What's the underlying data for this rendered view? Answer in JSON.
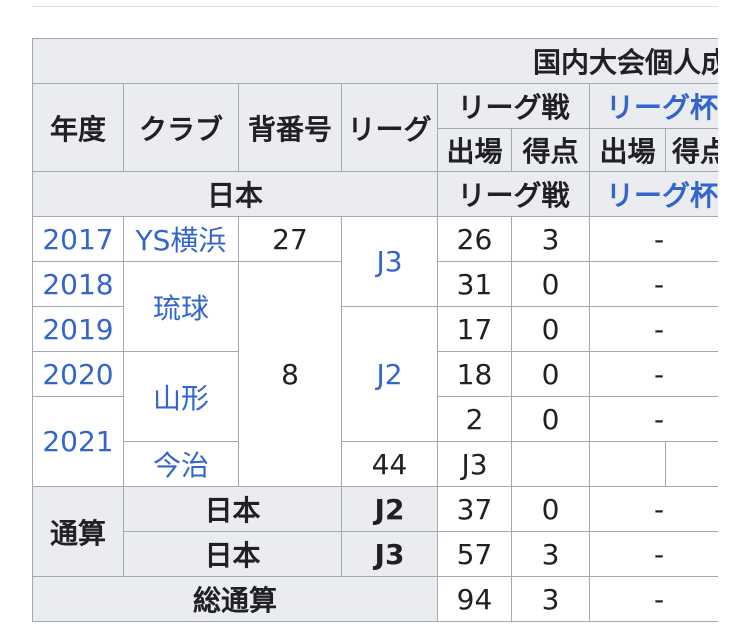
{
  "table": {
    "section_title": "国内大会個人成績",
    "headers": {
      "year": "年度",
      "club": "クラブ",
      "number": "背番号",
      "league": "リーグ",
      "league_matches": "リーグ戦",
      "league_cup": "リーグ杯",
      "apps": "出場",
      "goals": "得点"
    },
    "country_row": {
      "country": "日本",
      "league_matches": "リーグ戦",
      "league_cup": "リーグ杯"
    },
    "rows": [
      {
        "year": "2017",
        "club": "YS横浜",
        "number": "27",
        "league": "J3",
        "apps": "26",
        "goals": "3",
        "cup": "-"
      },
      {
        "year": "2018",
        "club": "琉球",
        "number": "8",
        "league": "",
        "apps": "31",
        "goals": "0",
        "cup": "-"
      },
      {
        "year": "2019",
        "club": "",
        "number": "",
        "league": "J2",
        "apps": "17",
        "goals": "0",
        "cup": "-"
      },
      {
        "year": "2020",
        "club": "山形",
        "number": "",
        "league": "",
        "apps": "18",
        "goals": "0",
        "cup": "-"
      },
      {
        "year": "2021",
        "club": "",
        "number": "",
        "league": "",
        "apps": "2",
        "goals": "0",
        "cup": "-"
      },
      {
        "year": "",
        "club": "今治",
        "number": "44",
        "league": "J3",
        "apps": "",
        "goals": "",
        "cup": "-"
      }
    ],
    "totals_label": "通算",
    "totals": [
      {
        "country": "日本",
        "league": "J2",
        "apps": "37",
        "goals": "0",
        "cup": "-"
      },
      {
        "country": "日本",
        "league": "J3",
        "apps": "57",
        "goals": "3",
        "cup": "-"
      }
    ],
    "grand_total": {
      "label": "総通算",
      "apps": "94",
      "goals": "3",
      "cup": "-"
    }
  }
}
